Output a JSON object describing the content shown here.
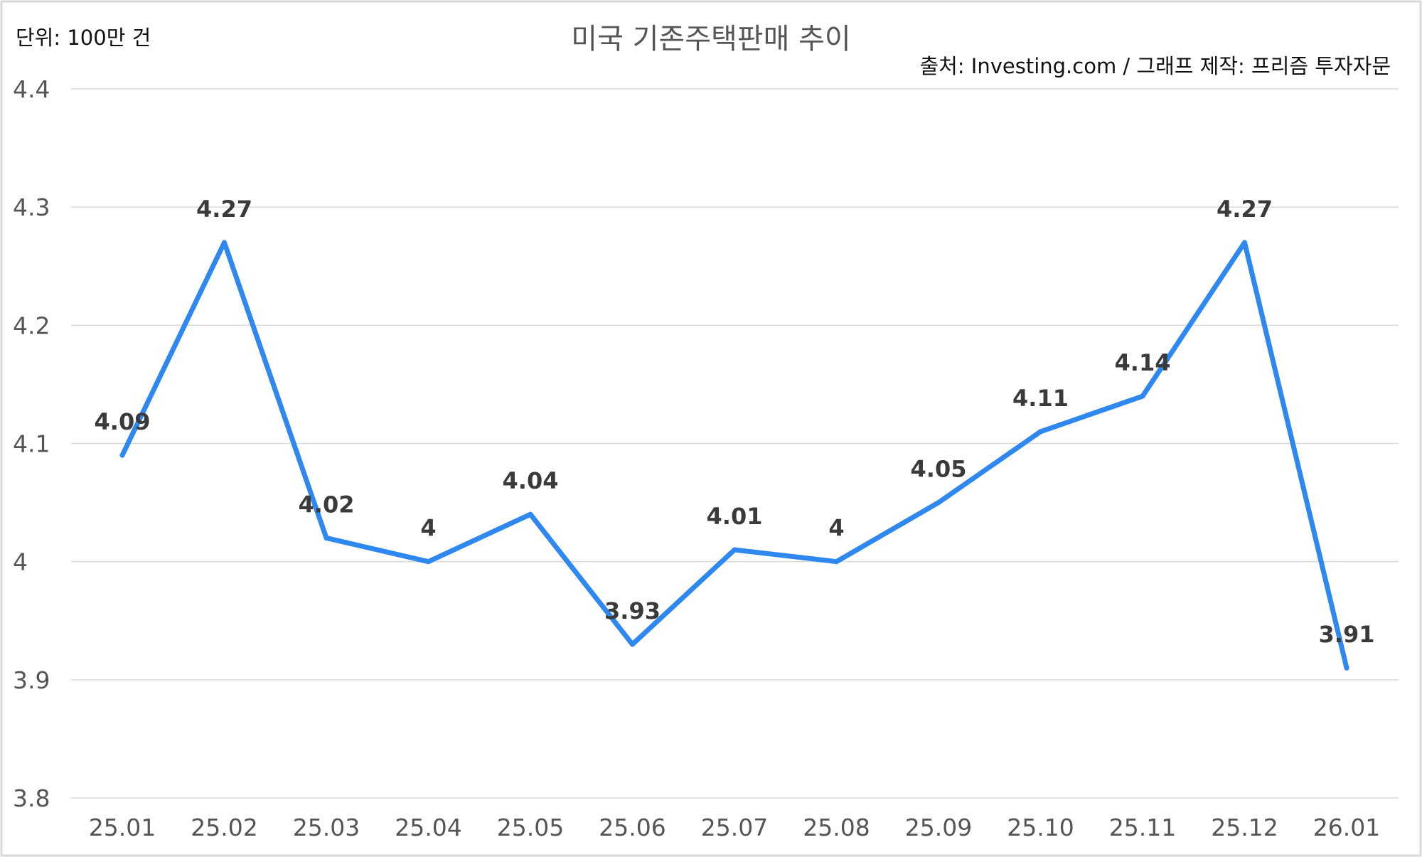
{
  "chart_data": {
    "type": "line",
    "title": "미국 기존주택판매 추이",
    "unit_label": "단위: 100만 건",
    "source_label": "출처: Investing.com / 그래프 제작: 프리즘 투자자문",
    "categories": [
      "25.01",
      "25.02",
      "25.03",
      "25.04",
      "25.05",
      "25.06",
      "25.07",
      "25.08",
      "25.09",
      "25.10",
      "25.11",
      "25.12",
      "26.01"
    ],
    "series": [
      {
        "values": [
          4.09,
          4.27,
          4.02,
          4.0,
          4.04,
          3.93,
          4.01,
          4.0,
          4.05,
          4.11,
          4.14,
          4.27,
          3.91
        ]
      }
    ],
    "data_labels": [
      "4.09",
      "4.27",
      "4.02",
      "4",
      "4.04",
      "3.93",
      "4.01",
      "4",
      "4.05",
      "4.11",
      "4.14",
      "4.27",
      "3.91"
    ],
    "yticks": [
      "3.8",
      "3.9",
      "4",
      "4.1",
      "4.2",
      "4.3",
      "4.4"
    ],
    "ylim": [
      3.8,
      4.4
    ],
    "grid": true,
    "legend": "none",
    "colors": {
      "line": "#2e88ef"
    }
  }
}
